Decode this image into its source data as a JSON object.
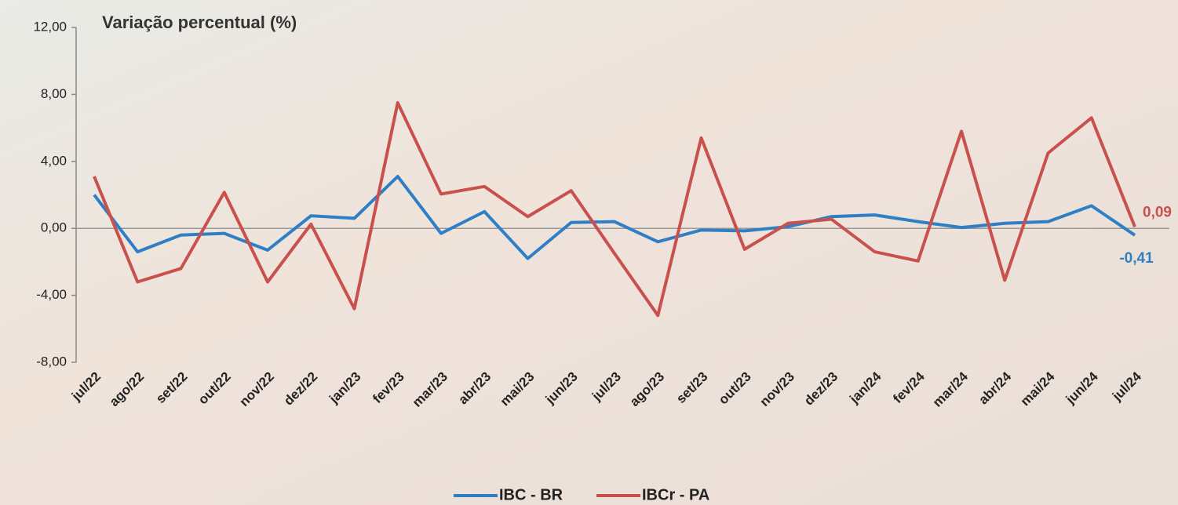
{
  "chart_data": {
    "type": "line",
    "title": "Variação percentual (%)",
    "categories": [
      "jul/22",
      "ago/22",
      "set/22",
      "out/22",
      "nov/22",
      "dez/22",
      "jan/23",
      "fev/23",
      "mar/23",
      "abr/23",
      "mai/23",
      "jun/23",
      "jul/23",
      "ago/23",
      "set/23",
      "out/23",
      "nov/23",
      "dez/23",
      "jan/24",
      "fev/24",
      "mar/24",
      "abr/24",
      "mai/24",
      "jun/24",
      "jul/24"
    ],
    "series": [
      {
        "name": "IBC - BR",
        "color": "#2e7fc6",
        "values": [
          2.0,
          -1.4,
          -0.4,
          -0.3,
          -1.3,
          0.75,
          0.6,
          3.1,
          -0.3,
          1.0,
          -1.8,
          0.35,
          0.4,
          -0.8,
          -0.1,
          -0.15,
          0.1,
          0.7,
          0.8,
          0.4,
          0.05,
          0.3,
          0.4,
          1.35,
          -0.41
        ],
        "value_labels": [
          null,
          null,
          null,
          null,
          null,
          null,
          null,
          null,
          null,
          null,
          null,
          null,
          null,
          null,
          null,
          null,
          null,
          null,
          null,
          null,
          null,
          null,
          null,
          null,
          "-0,41"
        ]
      },
      {
        "name": "IBCr - PA",
        "color": "#c9504d",
        "values": [
          3.1,
          -3.2,
          -2.4,
          2.15,
          -3.2,
          0.25,
          -4.8,
          7.5,
          2.05,
          2.5,
          0.7,
          2.25,
          -1.5,
          -5.2,
          5.4,
          -1.25,
          0.3,
          0.55,
          -1.4,
          -1.95,
          5.8,
          -3.1,
          4.5,
          6.6,
          0.09
        ],
        "value_labels": [
          null,
          null,
          null,
          null,
          null,
          null,
          null,
          null,
          null,
          null,
          null,
          null,
          null,
          null,
          null,
          null,
          null,
          null,
          null,
          null,
          null,
          null,
          null,
          null,
          "0,09"
        ]
      }
    ],
    "ylim": [
      -8,
      12
    ],
    "yticks": [
      {
        "value": -8,
        "label": "-8,00"
      },
      {
        "value": -4,
        "label": "-4,00"
      },
      {
        "value": 0,
        "label": "0,00"
      },
      {
        "value": 4,
        "label": "4,00"
      },
      {
        "value": 8,
        "label": "8,00"
      },
      {
        "value": 12,
        "label": "12,00"
      }
    ]
  }
}
